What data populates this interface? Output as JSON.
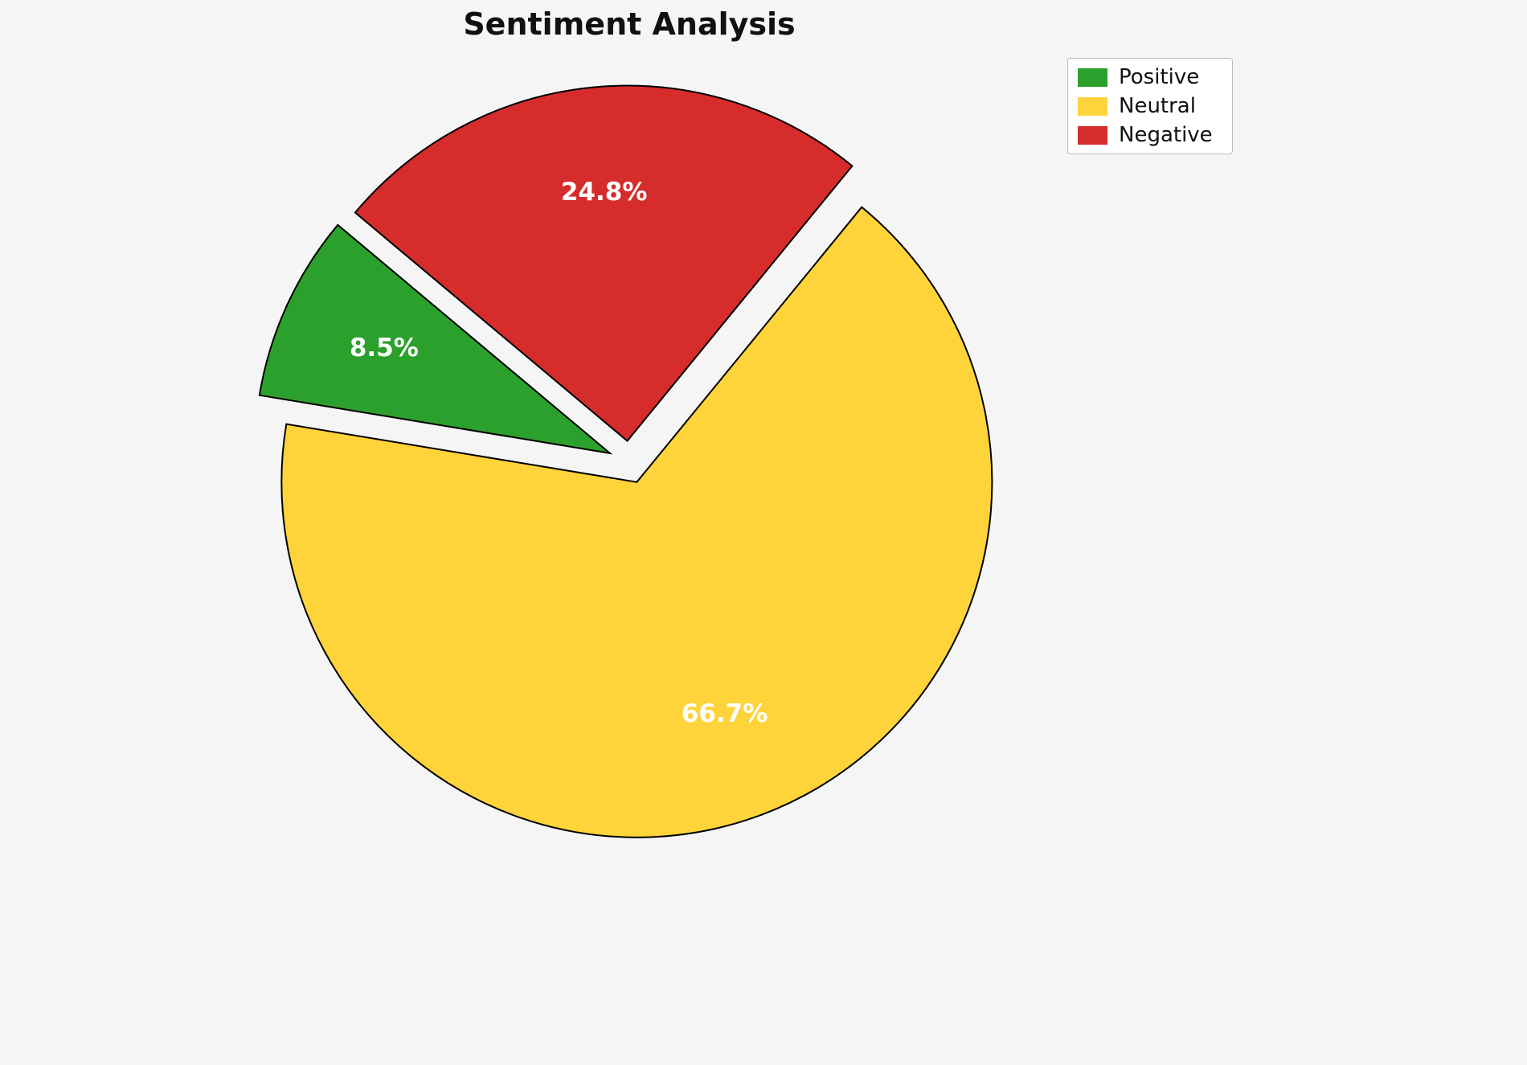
{
  "chart_data": {
    "type": "pie",
    "title": "Sentiment Analysis",
    "labels": [
      "Positive",
      "Neutral",
      "Negative"
    ],
    "values": [
      8.5,
      66.7,
      24.8
    ],
    "pct_labels": [
      "8.5%",
      "66.7%",
      "24.8%"
    ],
    "colors": [
      "#2CA02C",
      "#FFD43B",
      "#D62C2C"
    ],
    "edge_color": "#000000",
    "label_color": "#FFFFFF",
    "background": "#F5F5F5",
    "start_angle": 140,
    "counterclockwise": true,
    "explode": [
      0.06,
      0.06,
      0.06
    ],
    "pct_distance": 0.7,
    "legend": {
      "position": "upper right",
      "items": [
        "Positive",
        "Neutral",
        "Negative"
      ]
    }
  }
}
